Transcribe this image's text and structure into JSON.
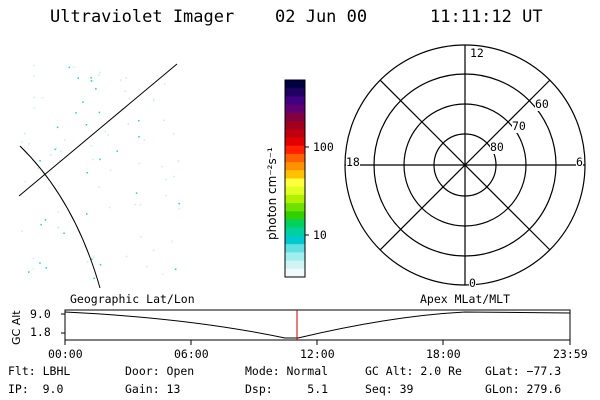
{
  "header": {
    "instrument": "Ultraviolet Imager",
    "date": "02 Jun 00",
    "time": "11:11:12 UT"
  },
  "colorbar": {
    "unit_label": "photon cm⁻²s⁻¹",
    "ticks": [
      "100",
      "10"
    ],
    "colors": [
      "#000040",
      "#200060",
      "#400080",
      "#600070",
      "#800040",
      "#a00020",
      "#c00010",
      "#e00000",
      "#ff2000",
      "#ff6000",
      "#ff9000",
      "#ffc000",
      "#ffff40",
      "#e0ff20",
      "#b0f000",
      "#70e000",
      "#30d000",
      "#00d060",
      "#00d0a0",
      "#00c8d0",
      "#60e0e0",
      "#a0eeee",
      "#d0f4f4",
      "#f0fafa"
    ]
  },
  "polar": {
    "mlt_labels": [
      "12",
      "18",
      "6",
      "0"
    ],
    "lat_labels": [
      "60",
      "70",
      "80"
    ]
  },
  "altitude_panel": {
    "left_title": "Geographic Lat/Lon",
    "right_title": "Apex MLat/MLT",
    "y_axis_label": "GC Alt",
    "y_ticks": [
      "9.0",
      "1.8"
    ],
    "x_ticks": [
      "00:00",
      "06:00",
      "12:00",
      "18:00",
      "23:59"
    ],
    "marker_color": "#cc0000"
  },
  "footer": {
    "filter": "Flt: LBHL",
    "ip": "IP:  9.0",
    "door": "Door: Open",
    "gain": "Gain: 13",
    "mode": "Mode: Normal",
    "dsp": "Dsp:     5.1",
    "gc_alt": "GC Alt: 2.0 Re",
    "seq": "Seq: 39",
    "glat": "GLat: −77.3",
    "glon": "GLon: 279.6"
  }
}
